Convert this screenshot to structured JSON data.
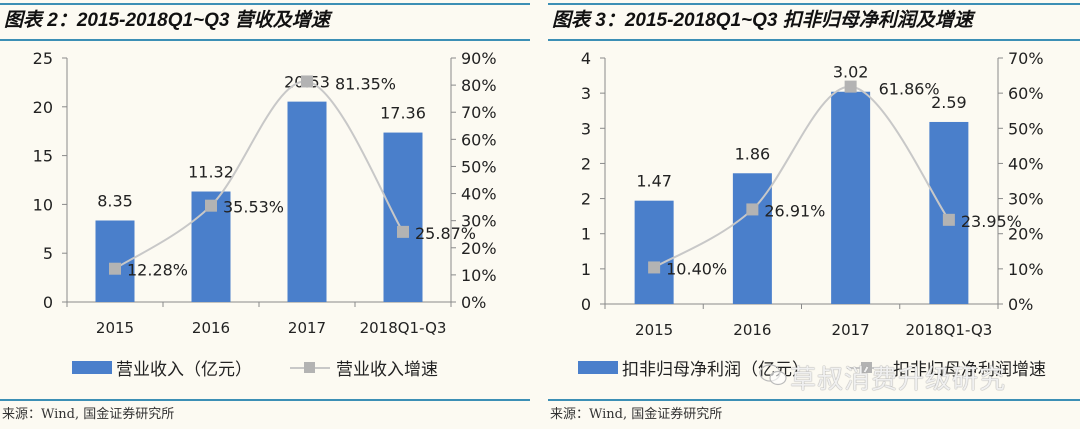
{
  "left_panel": {
    "title": "图表 2：2015-2018Q1~Q3 营收及增速",
    "legend": {
      "bar_label": "营业收入（亿元）",
      "line_label": "营业收入增速"
    },
    "source": "来源：Wind, 国金证券研究所"
  },
  "right_panel": {
    "title": "图表 3：2015-2018Q1~Q3 扣非归母净利润及增速",
    "legend": {
      "bar_label": "扣非归母净利润（亿元）",
      "line_label": "扣非归母净利润增速"
    },
    "source": "来源：Wind, 国金证券研究所"
  },
  "watermark": "草叔消费升级研究",
  "colors": {
    "bar": "#4a7fcb",
    "line": "#c8c8c8",
    "marker": "#b3b3b3",
    "rule": "#3c8fb5",
    "axis": "#8a8a8a",
    "background": "#fcfaf2"
  },
  "chart_data": [
    {
      "type": "bar",
      "title": "图表 2：2015-2018Q1~Q3 营收及增速",
      "categories": [
        "2015",
        "2016",
        "2017",
        "2018Q1-Q3"
      ],
      "series": [
        {
          "name": "营业收入（亿元）",
          "type": "bar",
          "axis": "left",
          "values": [
            8.35,
            11.32,
            20.53,
            17.36
          ],
          "labels": [
            "8.35",
            "11.32",
            "20.53",
            "17.36"
          ]
        },
        {
          "name": "营业收入增速",
          "type": "line",
          "axis": "right",
          "values": [
            12.28,
            35.53,
            81.35,
            25.87
          ],
          "labels": [
            "12.28%",
            "35.53%",
            "81.35%",
            "25.87%"
          ]
        }
      ],
      "y_left": {
        "min": 0,
        "max": 25,
        "ticks": [
          "0",
          "5",
          "10",
          "15",
          "20",
          "25"
        ]
      },
      "y_right": {
        "min": 0,
        "max": 90,
        "ticks": [
          "0%",
          "10%",
          "20%",
          "30%",
          "40%",
          "50%",
          "60%",
          "70%",
          "80%",
          "90%"
        ]
      },
      "xlabel": "",
      "ylabel": "",
      "grid": false,
      "legend_position": "bottom"
    },
    {
      "type": "bar",
      "title": "图表 3：2015-2018Q1~Q3 扣非归母净利润及增速",
      "categories": [
        "2015",
        "2016",
        "2017",
        "2018Q1-Q3"
      ],
      "series": [
        {
          "name": "扣非归母净利润（亿元）",
          "type": "bar",
          "axis": "left",
          "values": [
            1.47,
            1.86,
            3.02,
            2.59
          ],
          "labels": [
            "1.47",
            "1.86",
            "3.02",
            "2.59"
          ]
        },
        {
          "name": "扣非归母净利润增速",
          "type": "line",
          "axis": "right",
          "values": [
            10.4,
            26.91,
            61.86,
            23.95
          ],
          "labels": [
            "10.40%",
            "26.91%",
            "61.86%",
            "23.95%"
          ]
        }
      ],
      "y_left": {
        "min": 0,
        "max": 3.5,
        "ticks": [
          "0",
          "1",
          "1",
          "2",
          "2",
          "3",
          "3",
          "4"
        ]
      },
      "y_right": {
        "min": 0,
        "max": 70,
        "ticks": [
          "0%",
          "10%",
          "20%",
          "30%",
          "40%",
          "50%",
          "60%",
          "70%"
        ]
      },
      "xlabel": "",
      "ylabel": "",
      "grid": false,
      "legend_position": "bottom"
    }
  ]
}
